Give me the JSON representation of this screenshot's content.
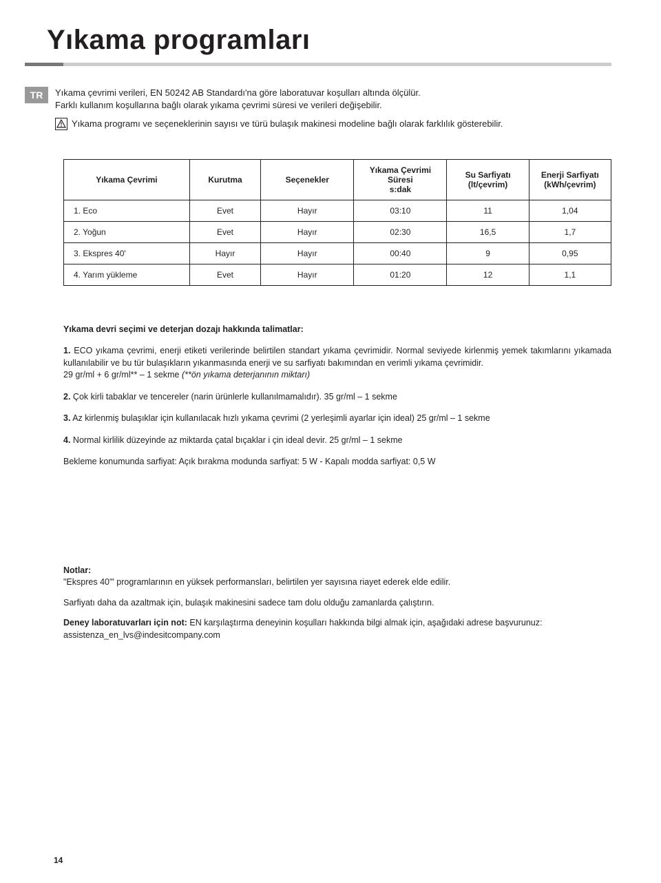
{
  "title": "Yıkama programları",
  "language_tab": "TR",
  "intro": {
    "line1": "Yıkama çevrimi verileri, EN 50242 AB Standardı'na göre laboratuvar koşulları altında ölçülür.",
    "line2": "Farklı kullanım koşullarına bağlı olarak yıkama çevrimi süresi ve verileri değişebilir.",
    "warn": "Yıkama programı ve seçeneklerinin sayısı ve türü bulaşık makinesi modeline bağlı olarak farklılık gösterebilir."
  },
  "table": {
    "columns": [
      "Yıkama Çevrimi",
      "Kurutma",
      "Seçenekler",
      "Yıkama Çevrimi\nSüresi\ns:dak",
      "Su Sarfiyatı\n(lt/çevrim)",
      "Enerji Sarfiyatı\n(kWh/çevrim)"
    ],
    "rows": [
      {
        "name": "1. Eco",
        "dry": "Evet",
        "opt": "Hayır",
        "dur": "03:10",
        "water": "11",
        "energy": "1,04"
      },
      {
        "name": "2. Yoğun",
        "dry": "Evet",
        "opt": "Hayır",
        "dur": "02:30",
        "water": "16,5",
        "energy": "1,7"
      },
      {
        "name": "3. Ekspres 40'",
        "dry": "Hayır",
        "opt": "Hayır",
        "dur": "00:40",
        "water": "9",
        "energy": "0,95"
      },
      {
        "name": "4. Yarım yükleme",
        "dry": "Evet",
        "opt": "Hayır",
        "dur": "01:20",
        "water": "12",
        "energy": "1,1"
      }
    ]
  },
  "instructions": {
    "heading": "Yıkama devri seçimi ve deterjan dozajı hakkında talimatlar:",
    "p1_a": "1.",
    "p1_b": " ECO yıkama çevrimi, enerji etiketi verilerinde belirtilen standart yıkama çevrimidir. Normal seviyede kirlenmiş yemek takımlarını yıkamada kullanılabilir ve bu tür bulaşıkların yıkanmasında enerji ve su sarfiyatı bakımından en verimli yıkama çevrimidir.",
    "p1_c": "29 gr/ml + 6 gr/ml** – 1 sekme  ",
    "p1_d": "(**ön yıkama deterjanının miktarı)",
    "p2_a": "2.",
    "p2_b": " Çok kirli tabaklar ve tencereler (narin ürünlerle kullanılmamalıdır). 35 gr/ml – 1 sekme",
    "p3_a": "3.",
    "p3_b": " Az kirlenmiş bulaşıklar için kullanılacak hızlı yıkama çevrimi (2 yerleşimli ayarlar için ideal) 25 gr/ml – 1 sekme",
    "p4_a": "4.",
    "p4_b": " Normal kirlilik düzeyinde az miktarda çatal bıçaklar i çin ideal devir. 25 gr/ml – 1 sekme",
    "standby": "Bekleme konumunda sarfiyat: Açık bırakma modunda sarfiyat: 5 W - Kapalı modda sarfiyat: 0,5 W"
  },
  "notes": {
    "heading": "Notlar:",
    "n1": "\"Ekspres 40'\" programlarının en yüksek performansları, belirtilen yer sayısına riayet ederek elde edilir.",
    "n2": "Sarfiyatı daha da azaltmak için, bulaşık makinesini sadece tam dolu olduğu zamanlarda çalıştırın.",
    "n3_a": "Deney laboratuvarları için not:",
    "n3_b": " EN karşılaştırma deneyinin koşulları hakkında bilgi almak için, aşağıdaki adrese başvurunuz: assistenza_en_lvs@indesitcompany.com"
  },
  "page_number": "14",
  "colors": {
    "text": "#231f20",
    "rule_dark": "#777777",
    "rule_light": "#cccccc",
    "tab_bg": "#999999",
    "tab_fg": "#ffffff",
    "border": "#231f20",
    "background": "#ffffff"
  }
}
